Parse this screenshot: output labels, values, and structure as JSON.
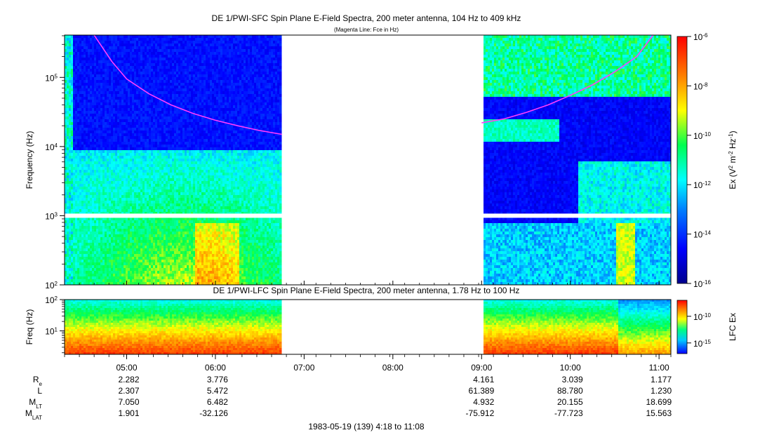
{
  "chart_data": [
    {
      "type": "heatmap",
      "title": "DE 1/PWI-SFC  Spin Plane E-Field Spectra, 200 meter antenna, 104 Hz to 409 kHz",
      "subtitle": "(Magenta Line: Fce in Hz)",
      "ylabel": "Frequency (Hz)",
      "yscale": "log",
      "ylim": [
        100,
        409000
      ],
      "y_ticks": [
        {
          "base": "10",
          "exp": "5",
          "value": 100000
        },
        {
          "base": "10",
          "exp": "4",
          "value": 10000
        },
        {
          "base": "10",
          "exp": "3",
          "value": 1000
        },
        {
          "base": "10",
          "exp": "2",
          "value": 100
        }
      ],
      "colorbar": {
        "label_parts": [
          "Ex (V",
          "2",
          " m",
          "-2",
          " Hz",
          "-1",
          ")"
        ],
        "scale": "log",
        "range": [
          1e-16,
          1e-06
        ],
        "ticks": [
          {
            "base": "10",
            "exp": "-6",
            "value": 1e-06
          },
          {
            "base": "10",
            "exp": "-8",
            "value": 1e-08
          },
          {
            "base": "10",
            "exp": "-10",
            "value": 1e-10
          },
          {
            "base": "10",
            "exp": "-12",
            "value": 1e-12
          },
          {
            "base": "10",
            "exp": "-14",
            "value": 1e-14
          },
          {
            "base": "10",
            "exp": "-16",
            "value": 1e-16
          }
        ]
      },
      "data_gaps": [
        [
          "06:45",
          "09:00"
        ]
      ],
      "fce_line": {
        "color": "#ff3cff",
        "segments": [
          [
            [
              "04:38",
              409000
            ],
            [
              "04:50",
              170000
            ],
            [
              "05:00",
              95000
            ],
            [
              "05:15",
              58000
            ],
            [
              "05:30",
              40000
            ],
            [
              "05:45",
              30000
            ],
            [
              "06:00",
              24000
            ],
            [
              "06:15",
              20000
            ],
            [
              "06:30",
              17000
            ],
            [
              "06:45",
              15000
            ]
          ],
          [
            [
              "09:00",
              22000
            ],
            [
              "09:15",
              25000
            ],
            [
              "09:30",
              31000
            ],
            [
              "09:45",
              40000
            ],
            [
              "10:00",
              55000
            ],
            [
              "10:15",
              78000
            ],
            [
              "10:30",
              120000
            ],
            [
              "10:45",
              200000
            ],
            [
              "10:56",
              409000
            ]
          ]
        ]
      }
    },
    {
      "type": "heatmap",
      "title": "DE 1/PWI-LFC  Spin Plane E-Field Spectra, 200 meter antenna, 1.78 Hz to 100 Hz",
      "ylabel": "Freq (Hz)",
      "yscale": "log",
      "ylim": [
        1.78,
        100
      ],
      "y_ticks": [
        {
          "base": "10",
          "exp": "2",
          "value": 100
        },
        {
          "base": "10",
          "exp": "1",
          "value": 10
        }
      ],
      "colorbar": {
        "label": "LFC Ex",
        "scale": "log",
        "ticks": [
          {
            "base": "10",
            "exp": "-10",
            "value": 1e-10
          },
          {
            "base": "10",
            "exp": "-15",
            "value": 1e-15
          }
        ]
      },
      "data_gaps": [
        [
          "06:45",
          "09:00"
        ]
      ]
    }
  ],
  "x_axis": {
    "range": [
      "04:18",
      "11:08"
    ],
    "ticks": [
      "05:00",
      "06:00",
      "07:00",
      "08:00",
      "09:00",
      "10:00",
      "11:00"
    ]
  },
  "ephemeris": {
    "rows": [
      {
        "label": "R",
        "sub": "e",
        "values": {
          "05:00": "2.282",
          "06:00": "3.776",
          "09:00": "4.161",
          "10:00": "3.039",
          "11:00": "1.177"
        }
      },
      {
        "label": "L",
        "sub": "",
        "values": {
          "05:00": "2.307",
          "06:00": "5.472",
          "09:00": "61.389",
          "10:00": "88.780",
          "11:00": "1.230"
        }
      },
      {
        "label": "M",
        "sub": "LT",
        "values": {
          "05:00": "7.050",
          "06:00": "6.482",
          "09:00": "4.932",
          "10:00": "20.155",
          "11:00": "18.699"
        }
      },
      {
        "label": "M",
        "sub": "LAT",
        "values": {
          "05:00": "1.901",
          "06:00": "-32.126",
          "09:00": "-75.912",
          "10:00": "-77.723",
          "11:00": "15.563"
        }
      }
    ]
  },
  "footer": "1983-05-19 (139) 4:18 to 11:08"
}
